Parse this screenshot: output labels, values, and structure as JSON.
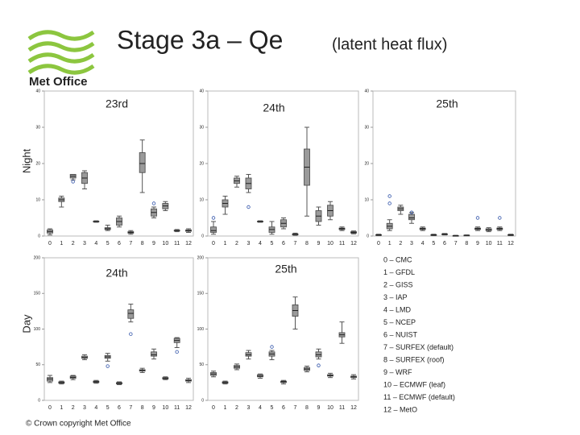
{
  "slide": {
    "title": "Stage 3a – Qe",
    "subtitle": "(latent heat flux)",
    "logo_text": "Met Office",
    "row_labels": [
      "Night",
      "Day"
    ],
    "legend": [
      "0 – CMC",
      "1 – GFDL",
      "2 – GISS",
      "3 – IAP",
      "4 – LMD",
      "5 – NCEP",
      "6 – NUIST",
      "7 – SURFEX (default)",
      "8 – SURFEX (roof)",
      "9 – WRF",
      "10 – ECMWF (leaf)",
      "11 – ECMWF (default)",
      "12 – MetO"
    ],
    "copyright": "© Crown copyright   Met Office"
  },
  "chart_data": [
    {
      "type": "box",
      "title": "23rd",
      "color": "#9a9a9a",
      "categories": [
        "0",
        "1",
        "2",
        "3",
        "4",
        "5",
        "6",
        "7",
        "8",
        "9",
        "10",
        "11",
        "12"
      ],
      "boxes": [
        [
          0.3,
          0.8,
          1.2,
          1.7,
          2
        ],
        [
          8,
          9.5,
          10,
          10.5,
          11
        ],
        [
          15.5,
          16,
          16.5,
          17,
          17
        ],
        [
          13,
          14.5,
          16,
          17.5,
          18
        ],
        [
          3.8,
          3.9,
          4,
          4.1,
          4.2
        ],
        [
          1.5,
          1.8,
          2,
          2.3,
          3
        ],
        [
          2.5,
          3,
          4,
          5,
          5.5
        ],
        [
          0.5,
          0.8,
          1,
          1.2,
          1.5
        ],
        [
          12,
          17.5,
          20,
          23,
          26.5
        ],
        [
          5,
          5.5,
          6.5,
          7.5,
          8
        ],
        [
          7,
          7.5,
          8.3,
          9,
          9.5
        ],
        [
          1.2,
          1.4,
          1.5,
          1.6,
          1.8
        ],
        [
          1,
          1.3,
          1.5,
          1.7,
          2
        ]
      ],
      "outliers": [
        [],
        [],
        [
          15
        ],
        [],
        [],
        [],
        [],
        [],
        [],
        [
          9
        ],
        [],
        [],
        []
      ],
      "ylim": [
        0,
        40
      ],
      "yticks": [
        0,
        10,
        20,
        30,
        40
      ]
    },
    {
      "type": "box",
      "title": "24th",
      "color": "#9a9a9a",
      "categories": [
        "0",
        "1",
        "2",
        "3",
        "4",
        "5",
        "6",
        "7",
        "8",
        "9",
        "10",
        "11",
        "12"
      ],
      "boxes": [
        [
          0.5,
          1,
          1.5,
          2.5,
          4
        ],
        [
          6,
          8,
          9,
          10,
          11
        ],
        [
          13.5,
          14.5,
          15.2,
          16,
          16.5
        ],
        [
          12,
          13,
          14.5,
          16,
          17
        ],
        [
          3.8,
          3.9,
          4,
          4.1,
          4.2
        ],
        [
          0.5,
          1,
          1.8,
          2.5,
          4
        ],
        [
          2,
          2.5,
          3.5,
          4.5,
          5
        ],
        [
          0.2,
          0.3,
          0.5,
          0.6,
          0.8
        ],
        [
          5.5,
          14,
          19,
          24,
          30
        ],
        [
          3,
          4,
          5.5,
          7,
          8
        ],
        [
          4.5,
          5.5,
          7,
          8.5,
          9.5
        ],
        [
          1.5,
          1.8,
          2,
          2.2,
          2.5
        ],
        [
          0.6,
          0.8,
          1,
          1.2,
          1.4
        ]
      ],
      "outliers": [
        [
          5
        ],
        [],
        [],
        [
          8
        ],
        [],
        [],
        [],
        [],
        [],
        [],
        [],
        [],
        []
      ],
      "ylim": [
        0,
        40
      ],
      "yticks": [
        0,
        10,
        20,
        30,
        40
      ]
    },
    {
      "type": "box",
      "title": "25th",
      "color": "#9a9a9a",
      "categories": [
        "0",
        "1",
        "2",
        "3",
        "4",
        "5",
        "6",
        "7",
        "8",
        "9",
        "10",
        "11",
        "12"
      ],
      "boxes": [
        [
          0.1,
          0.2,
          0.3,
          0.4,
          0.5
        ],
        [
          1.5,
          2,
          2.7,
          3.5,
          4.5
        ],
        [
          6,
          7,
          7.5,
          8,
          8.5
        ],
        [
          3.5,
          4.5,
          5,
          6,
          6.5
        ],
        [
          1.5,
          1.8,
          2,
          2.2,
          2.5
        ],
        [
          0.1,
          0.2,
          0.3,
          0.4,
          0.5
        ],
        [
          0.3,
          0.4,
          0.5,
          0.6,
          0.7
        ],
        [
          0,
          0.05,
          0.1,
          0.15,
          0.2
        ],
        [
          0.1,
          0.15,
          0.2,
          0.25,
          0.3
        ],
        [
          1.5,
          1.8,
          2,
          2.2,
          2.5
        ],
        [
          1.2,
          1.5,
          1.7,
          2,
          2.3
        ],
        [
          1.5,
          1.8,
          2,
          2.2,
          2.5
        ],
        [
          0.1,
          0.2,
          0.3,
          0.4,
          0.5
        ]
      ],
      "outliers": [
        [],
        [
          9,
          11
        ],
        [],
        [
          6.5
        ],
        [],
        [],
        [],
        [],
        [],
        [
          5
        ],
        [],
        [
          5
        ],
        []
      ],
      "ylim": [
        0,
        40
      ],
      "yticks": [
        0,
        10,
        20,
        30,
        40
      ]
    },
    {
      "type": "box",
      "title": "24th",
      "color": "#9a9a9a",
      "categories": [
        "0",
        "1",
        "2",
        "3",
        "4",
        "5",
        "6",
        "7",
        "8",
        "9",
        "10",
        "11",
        "12"
      ],
      "boxes": [
        [
          25,
          27,
          30,
          32,
          35
        ],
        [
          23,
          24,
          25,
          26,
          27
        ],
        [
          29,
          31,
          32,
          34,
          35
        ],
        [
          57,
          59,
          60,
          62,
          64
        ],
        [
          24,
          25,
          26,
          27,
          28
        ],
        [
          55,
          59,
          61,
          63,
          66
        ],
        [
          22,
          23,
          24,
          25,
          26
        ],
        [
          110,
          115,
          122,
          127,
          135
        ],
        [
          39,
          41,
          42,
          43,
          45
        ],
        [
          58,
          62,
          64,
          68,
          72
        ],
        [
          29,
          30,
          31,
          32,
          33
        ],
        [
          74,
          81,
          84,
          87,
          88
        ],
        [
          25,
          27,
          28,
          29,
          31
        ]
      ],
      "outliers": [
        [],
        [],
        [],
        [],
        [],
        [
          48
        ],
        [],
        [
          93
        ],
        [],
        [],
        [],
        [
          68
        ],
        []
      ],
      "ylim": [
        0,
        200
      ],
      "yticks": [
        0,
        50,
        100,
        150,
        200
      ]
    },
    {
      "type": "box",
      "title": "25th",
      "color": "#9a9a9a",
      "categories": [
        "0",
        "1",
        "2",
        "3",
        "4",
        "5",
        "6",
        "7",
        "8",
        "9",
        "10",
        "11",
        "12"
      ],
      "boxes": [
        [
          33,
          35,
          37,
          39,
          41
        ],
        [
          23,
          24,
          25,
          26,
          27
        ],
        [
          43,
          45,
          47,
          49,
          51
        ],
        [
          58,
          62,
          64,
          67,
          70
        ],
        [
          31,
          33,
          34,
          36,
          37
        ],
        [
          57,
          62,
          65,
          68,
          70
        ],
        [
          23,
          25,
          26,
          27,
          28
        ],
        [
          100,
          118,
          126,
          134,
          145
        ],
        [
          40,
          42,
          44,
          46,
          48
        ],
        [
          58,
          61,
          64,
          68,
          72
        ],
        [
          32,
          34,
          35,
          36,
          38
        ],
        [
          80,
          89,
          92,
          95,
          110
        ],
        [
          30,
          32,
          33,
          34,
          36
        ]
      ],
      "outliers": [
        [],
        [],
        [],
        [],
        [],
        [
          75
        ],
        [],
        [],
        [],
        [
          49
        ],
        [],
        [],
        []
      ],
      "ylim": [
        0,
        200
      ],
      "yticks": [
        0,
        50,
        100,
        150,
        200
      ]
    }
  ]
}
